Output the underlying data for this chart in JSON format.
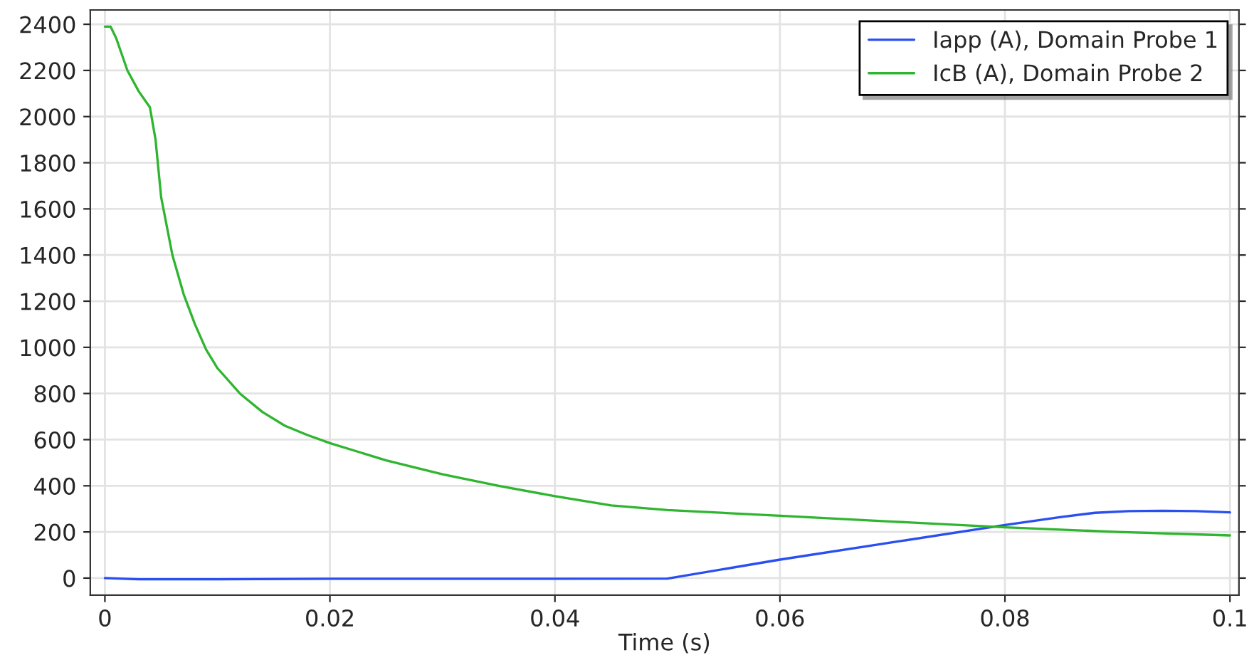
{
  "chart_data": {
    "type": "line",
    "xlabel": "Time (s)",
    "series": [
      {
        "name": "Iapp (A), Domain Probe 1",
        "color": "#2a4ff0",
        "x": [
          0,
          0.003,
          0.01,
          0.02,
          0.03,
          0.04,
          0.05,
          0.06,
          0.07,
          0.08,
          0.085,
          0.088,
          0.091,
          0.094,
          0.097,
          0.1
        ],
        "values": [
          0,
          -5,
          -5,
          -3,
          -3,
          -3,
          -2,
          80,
          155,
          230,
          265,
          283,
          290,
          292,
          290,
          285
        ]
      },
      {
        "name": "IcB (A), Domain Probe 2",
        "color": "#2fb52f",
        "x": [
          0,
          0.0005,
          0.001,
          0.002,
          0.003,
          0.004,
          0.0045,
          0.005,
          0.006,
          0.007,
          0.008,
          0.009,
          0.01,
          0.012,
          0.014,
          0.016,
          0.018,
          0.02,
          0.025,
          0.03,
          0.035,
          0.04,
          0.045,
          0.05,
          0.06,
          0.07,
          0.08,
          0.09,
          0.1
        ],
        "values": [
          2390,
          2390,
          2340,
          2200,
          2110,
          2040,
          1900,
          1650,
          1400,
          1230,
          1100,
          990,
          910,
          800,
          720,
          660,
          620,
          585,
          510,
          450,
          400,
          355,
          315,
          295,
          270,
          245,
          220,
          200,
          185
        ]
      }
    ],
    "xlim": [
      -0.0013,
      0.1008
    ],
    "ylim": [
      -74,
      2462
    ],
    "xticks": [
      0,
      0.02,
      0.04,
      0.06,
      0.08,
      {
        "value": 0.1,
        "label": "0.1"
      }
    ],
    "yticks": [
      0,
      200,
      400,
      600,
      800,
      1000,
      1200,
      1400,
      1600,
      1800,
      2000,
      2200,
      2400
    ],
    "grid": true,
    "legend": "top right"
  }
}
